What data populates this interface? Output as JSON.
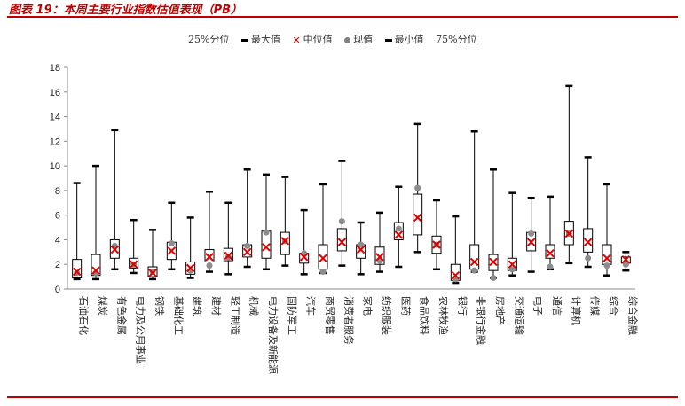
{
  "header": {
    "title": "图表 19：本周主要行业指数估值表现（PB）"
  },
  "legend": {
    "q25": "25%分位",
    "max": "最大值",
    "median": "中位值",
    "current": "现值",
    "min": "最小值",
    "q75": "75%分位"
  },
  "chart_data": {
    "type": "box",
    "title": "",
    "xlabel": "",
    "ylabel": "",
    "ylim": [
      0,
      18
    ],
    "yticks": [
      0,
      2,
      4,
      6,
      8,
      10,
      12,
      14,
      16,
      18
    ],
    "grid": false,
    "legend_position": "top",
    "colors": {
      "median": "#e00000",
      "current": "#808080",
      "whisker": "#000000"
    },
    "categories": [
      "石油石化",
      "煤炭",
      "有色金属",
      "电力及公用事业",
      "钢铁",
      "基础化工",
      "建筑",
      "建材",
      "轻工制造",
      "机械",
      "电力设备及新能源",
      "国防军工",
      "汽车",
      "商贸零售",
      "消费者服务",
      "家电",
      "纺织服装",
      "医药",
      "食品饮料",
      "农林牧渔",
      "银行",
      "非银行金融",
      "房地产",
      "交通运输",
      "电子",
      "通信",
      "计算机",
      "传媒",
      "综合",
      "综合金融"
    ],
    "series": [
      {
        "name": "最大值",
        "values": [
          8.6,
          10,
          12.9,
          5.6,
          4.8,
          7,
          5.8,
          7.9,
          7,
          9.7,
          9.3,
          9.1,
          6.4,
          8.5,
          10.4,
          5.4,
          6.2,
          8.3,
          13.4,
          7.2,
          5.9,
          12.8,
          9.7,
          7.8,
          7.4,
          7.5,
          16.5,
          10.7,
          8.5,
          3
        ]
      },
      {
        "name": "75%分位",
        "values": [
          2.4,
          2.8,
          4,
          2.5,
          1.8,
          3.8,
          2.2,
          3.2,
          3.3,
          3.6,
          4.7,
          4.6,
          2.9,
          3.6,
          4.9,
          3.6,
          3.4,
          5.4,
          7.7,
          4.3,
          2,
          3.6,
          2.8,
          2.5,
          4.6,
          3.6,
          5.5,
          4.9,
          3.6,
          2.6
        ]
      },
      {
        "name": "中位值",
        "values": [
          1.4,
          1.5,
          3.2,
          2,
          1.3,
          3.1,
          1.7,
          2.6,
          2.7,
          3,
          3.4,
          3.9,
          2.6,
          2.5,
          3.8,
          3.2,
          2.6,
          4.4,
          5.8,
          3.6,
          1.1,
          2.2,
          2.2,
          2,
          3.8,
          2.9,
          4.5,
          3.8,
          2.5,
          2.4
        ]
      },
      {
        "name": "25%分位",
        "values": [
          0.9,
          1.1,
          2.5,
          1.7,
          1,
          2.4,
          1.2,
          2.2,
          2.3,
          2.6,
          2.5,
          2.8,
          2.1,
          1.6,
          3.1,
          2.5,
          2,
          4,
          4.4,
          2.9,
          0.7,
          1.6,
          1.5,
          1.5,
          3.1,
          2.5,
          3.6,
          3,
          2,
          2.1
        ]
      },
      {
        "name": "最小值",
        "values": [
          0.8,
          0.8,
          1.6,
          1.3,
          0.8,
          1.6,
          0.9,
          1.4,
          1.2,
          1.8,
          1.6,
          1.9,
          1.2,
          1.3,
          1.9,
          1.2,
          1.4,
          1.8,
          3,
          1.6,
          0.5,
          1.4,
          0.9,
          1.1,
          1.4,
          1.6,
          2.1,
          1.8,
          1.1,
          1.5
        ]
      },
      {
        "name": "现值",
        "values": [
          1.3,
          1.3,
          3.5,
          2,
          1.4,
          3.7,
          1.5,
          1.9,
          2.6,
          3.5,
          4.6,
          3.9,
          2.9,
          1.4,
          5.5,
          3.6,
          2.3,
          4.9,
          8.2,
          3.6,
          0.8,
          1.5,
          0.9,
          1.6,
          4.5,
          1.8,
          4.5,
          2.5,
          1.9,
          2
        ]
      }
    ]
  }
}
